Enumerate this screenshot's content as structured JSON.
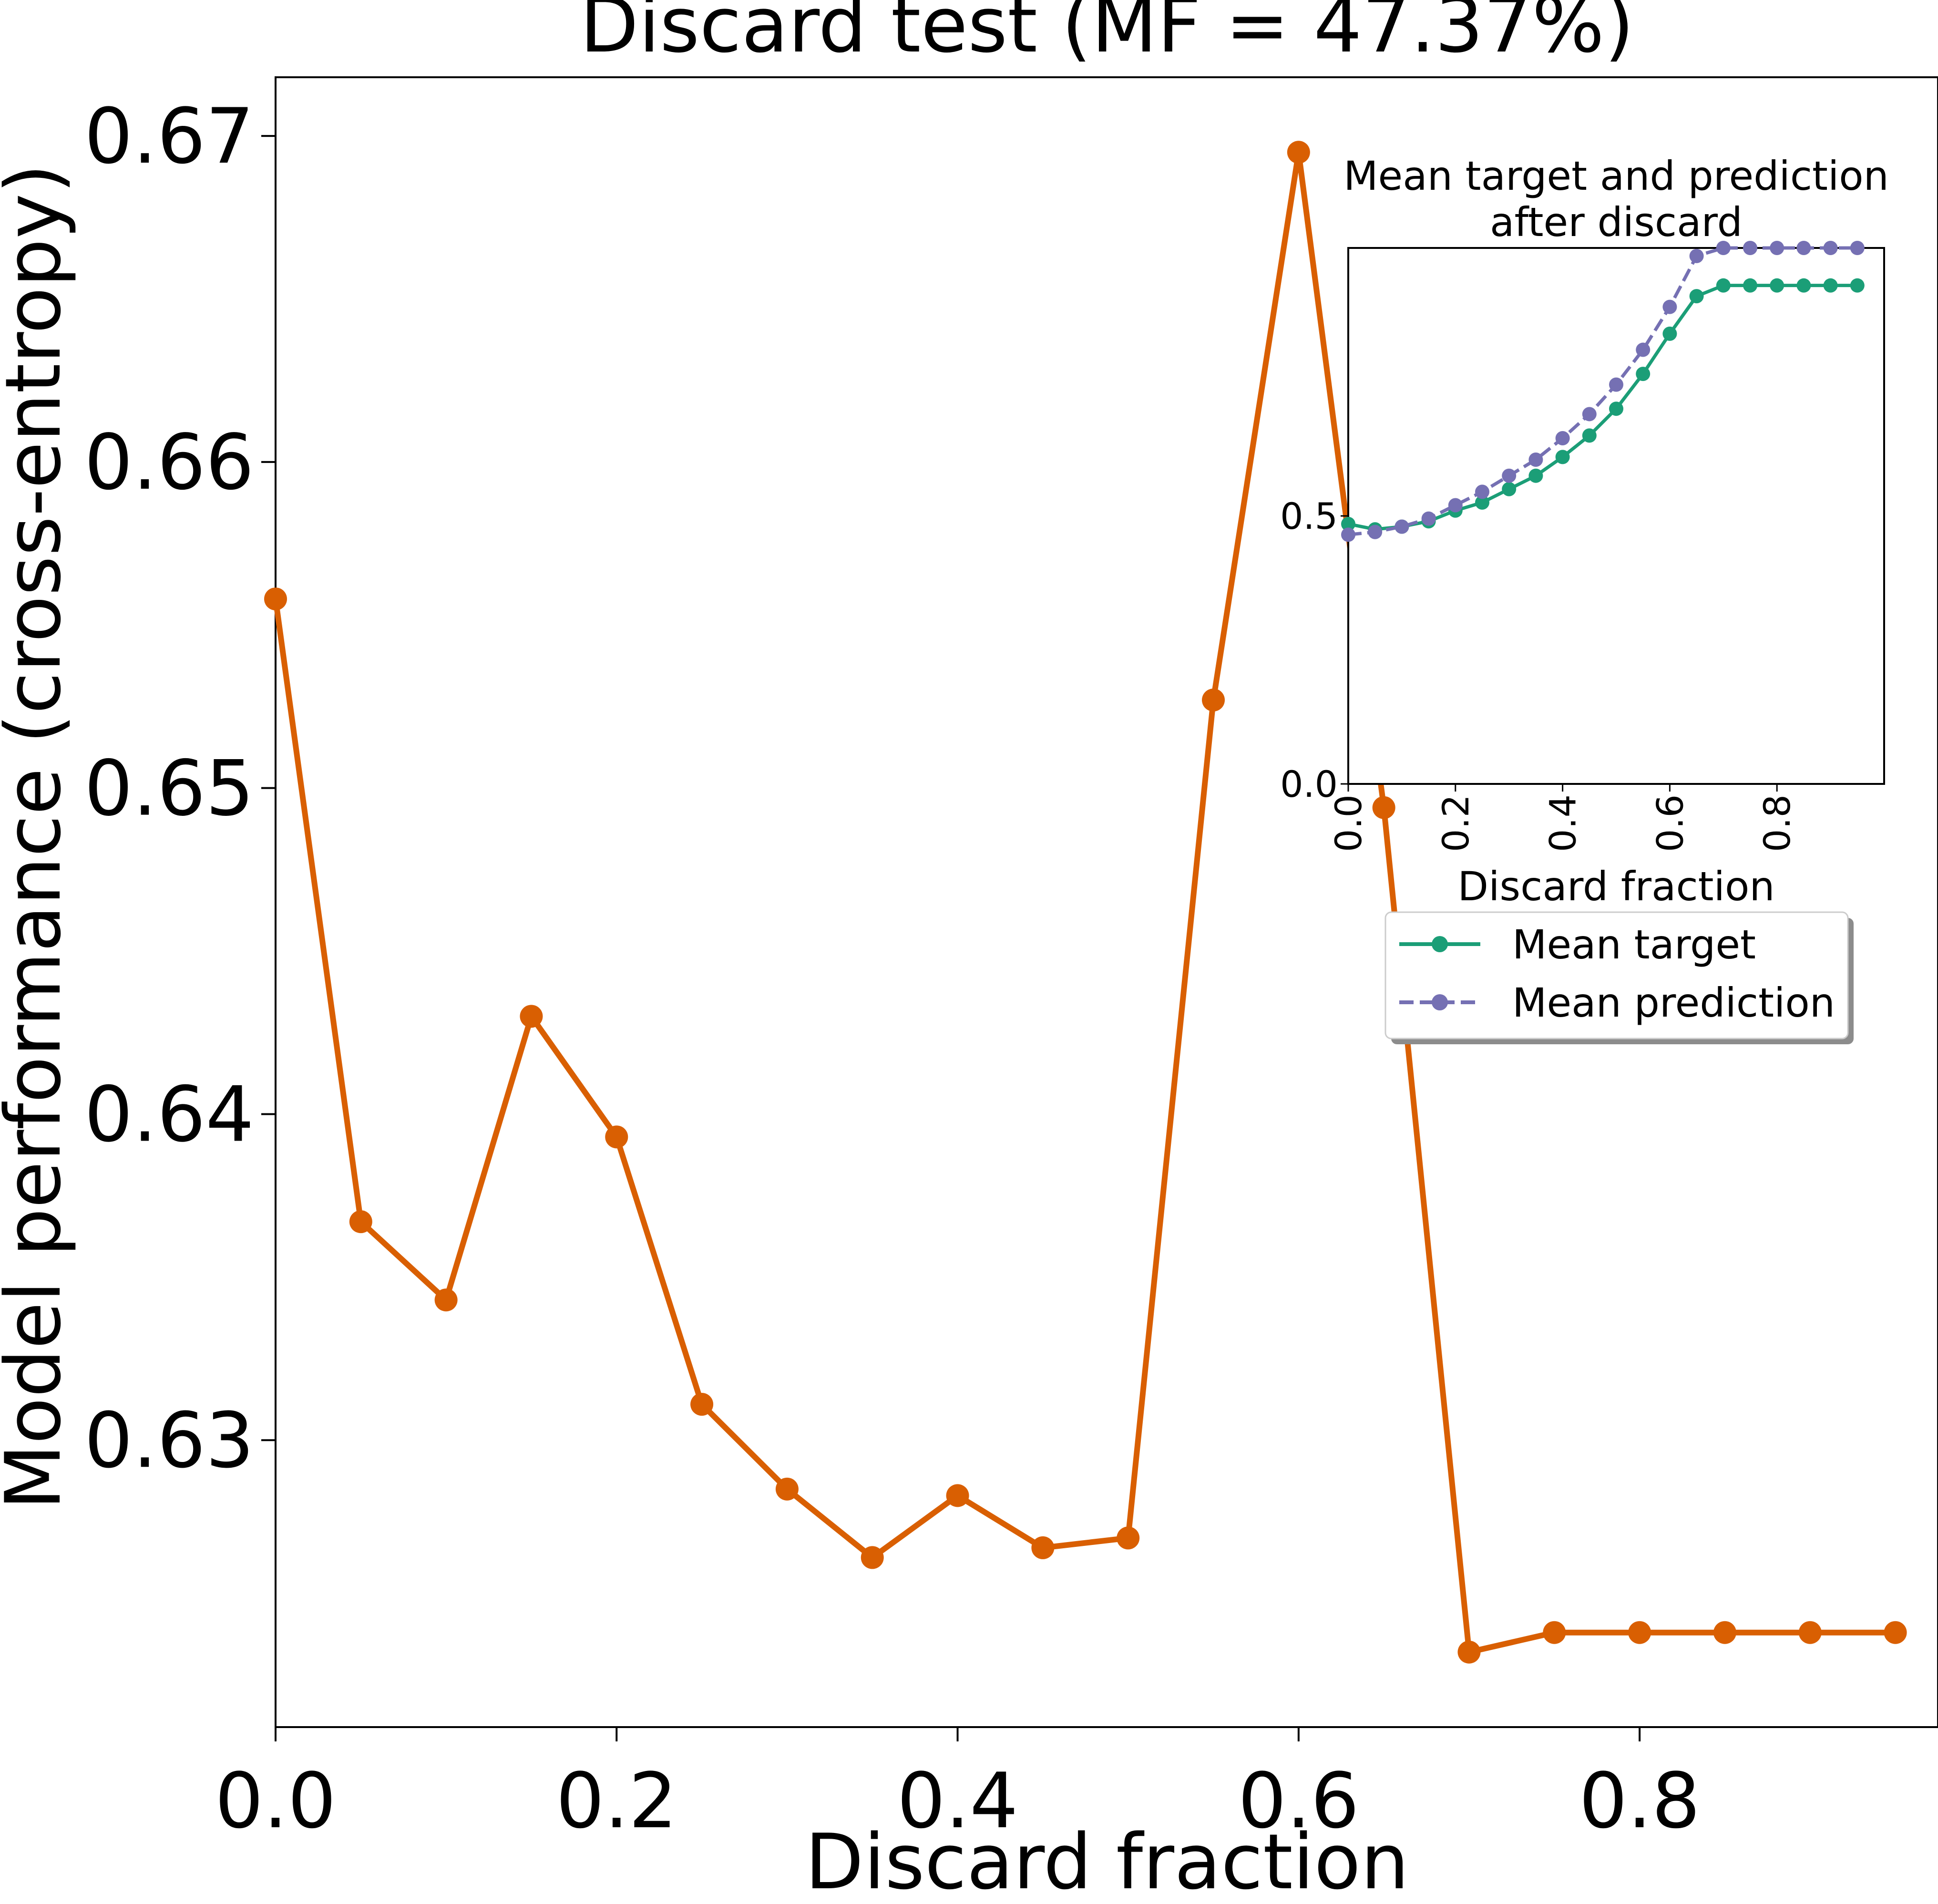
{
  "chart_data": [
    {
      "type": "line",
      "title": "Discard test (MF = 47.37%)",
      "xlabel": "Discard fraction",
      "ylabel": "Model performance (cross-entropy)",
      "xlim": [
        0.0,
        0.975
      ],
      "ylim": [
        0.6212,
        0.6718
      ],
      "xticks": [
        0.0,
        0.2,
        0.4,
        0.6,
        0.8
      ],
      "xtick_labels": [
        "0.0",
        "0.2",
        "0.4",
        "0.6",
        "0.8"
      ],
      "yticks": [
        0.63,
        0.64,
        0.65,
        0.66,
        0.67
      ],
      "ytick_labels": [
        "0.63",
        "0.64",
        "0.65",
        "0.66",
        "0.67"
      ],
      "grid": false,
      "series": [
        {
          "color": "#d95f02",
          "x": [
            0.0,
            0.05,
            0.1,
            0.15,
            0.2,
            0.25,
            0.3,
            0.35,
            0.4,
            0.45,
            0.5,
            0.55,
            0.6,
            0.65,
            0.7,
            0.75,
            0.8,
            0.85,
            0.9,
            0.95
          ],
          "values": [
            0.6558,
            0.6367,
            0.6343,
            0.643,
            0.6393,
            0.6311,
            0.6285,
            0.6264,
            0.6283,
            0.6267,
            0.627,
            0.6527,
            0.6695,
            0.6494,
            0.6235,
            0.6241,
            0.6241,
            0.6241,
            0.6241,
            0.6241
          ]
        }
      ]
    },
    {
      "type": "line",
      "title": "Mean target and prediction\nafter discard",
      "title_lines": [
        "Mean target and prediction",
        "after discard"
      ],
      "xlabel": "Discard fraction",
      "ylabel": "",
      "xlim": [
        0.0,
        1.0
      ],
      "ylim": [
        0.0,
        1.0
      ],
      "xticks": [
        0.0,
        0.2,
        0.4,
        0.6,
        0.8
      ],
      "xtick_labels": [
        "0.0",
        "0.2",
        "0.4",
        "0.6",
        "0.8"
      ],
      "yticks": [
        0.0,
        0.5
      ],
      "ytick_labels": [
        "0.0",
        "0.5"
      ],
      "grid": false,
      "legend_placement": "below inset",
      "x": [
        0.0,
        0.05,
        0.1,
        0.15,
        0.2,
        0.25,
        0.3,
        0.35,
        0.4,
        0.45,
        0.5,
        0.55,
        0.6,
        0.65,
        0.7,
        0.75,
        0.8,
        0.85,
        0.9,
        0.95
      ],
      "series": [
        {
          "name": "Mean target",
          "color": "#1b9e77",
          "style": "solid",
          "values": [
            0.485,
            0.475,
            0.48,
            0.49,
            0.51,
            0.525,
            0.55,
            0.575,
            0.61,
            0.65,
            0.7,
            0.765,
            0.84,
            0.91,
            0.93,
            0.93,
            0.93,
            0.93,
            0.93,
            0.93
          ]
        },
        {
          "name": "Mean prediction",
          "color": "#7570b3",
          "style": "dashed",
          "values": [
            0.465,
            0.47,
            0.48,
            0.495,
            0.52,
            0.545,
            0.575,
            0.605,
            0.645,
            0.69,
            0.745,
            0.81,
            0.89,
            0.985,
            1.0,
            1.0,
            1.0,
            1.0,
            1.0,
            1.0
          ]
        }
      ]
    }
  ]
}
